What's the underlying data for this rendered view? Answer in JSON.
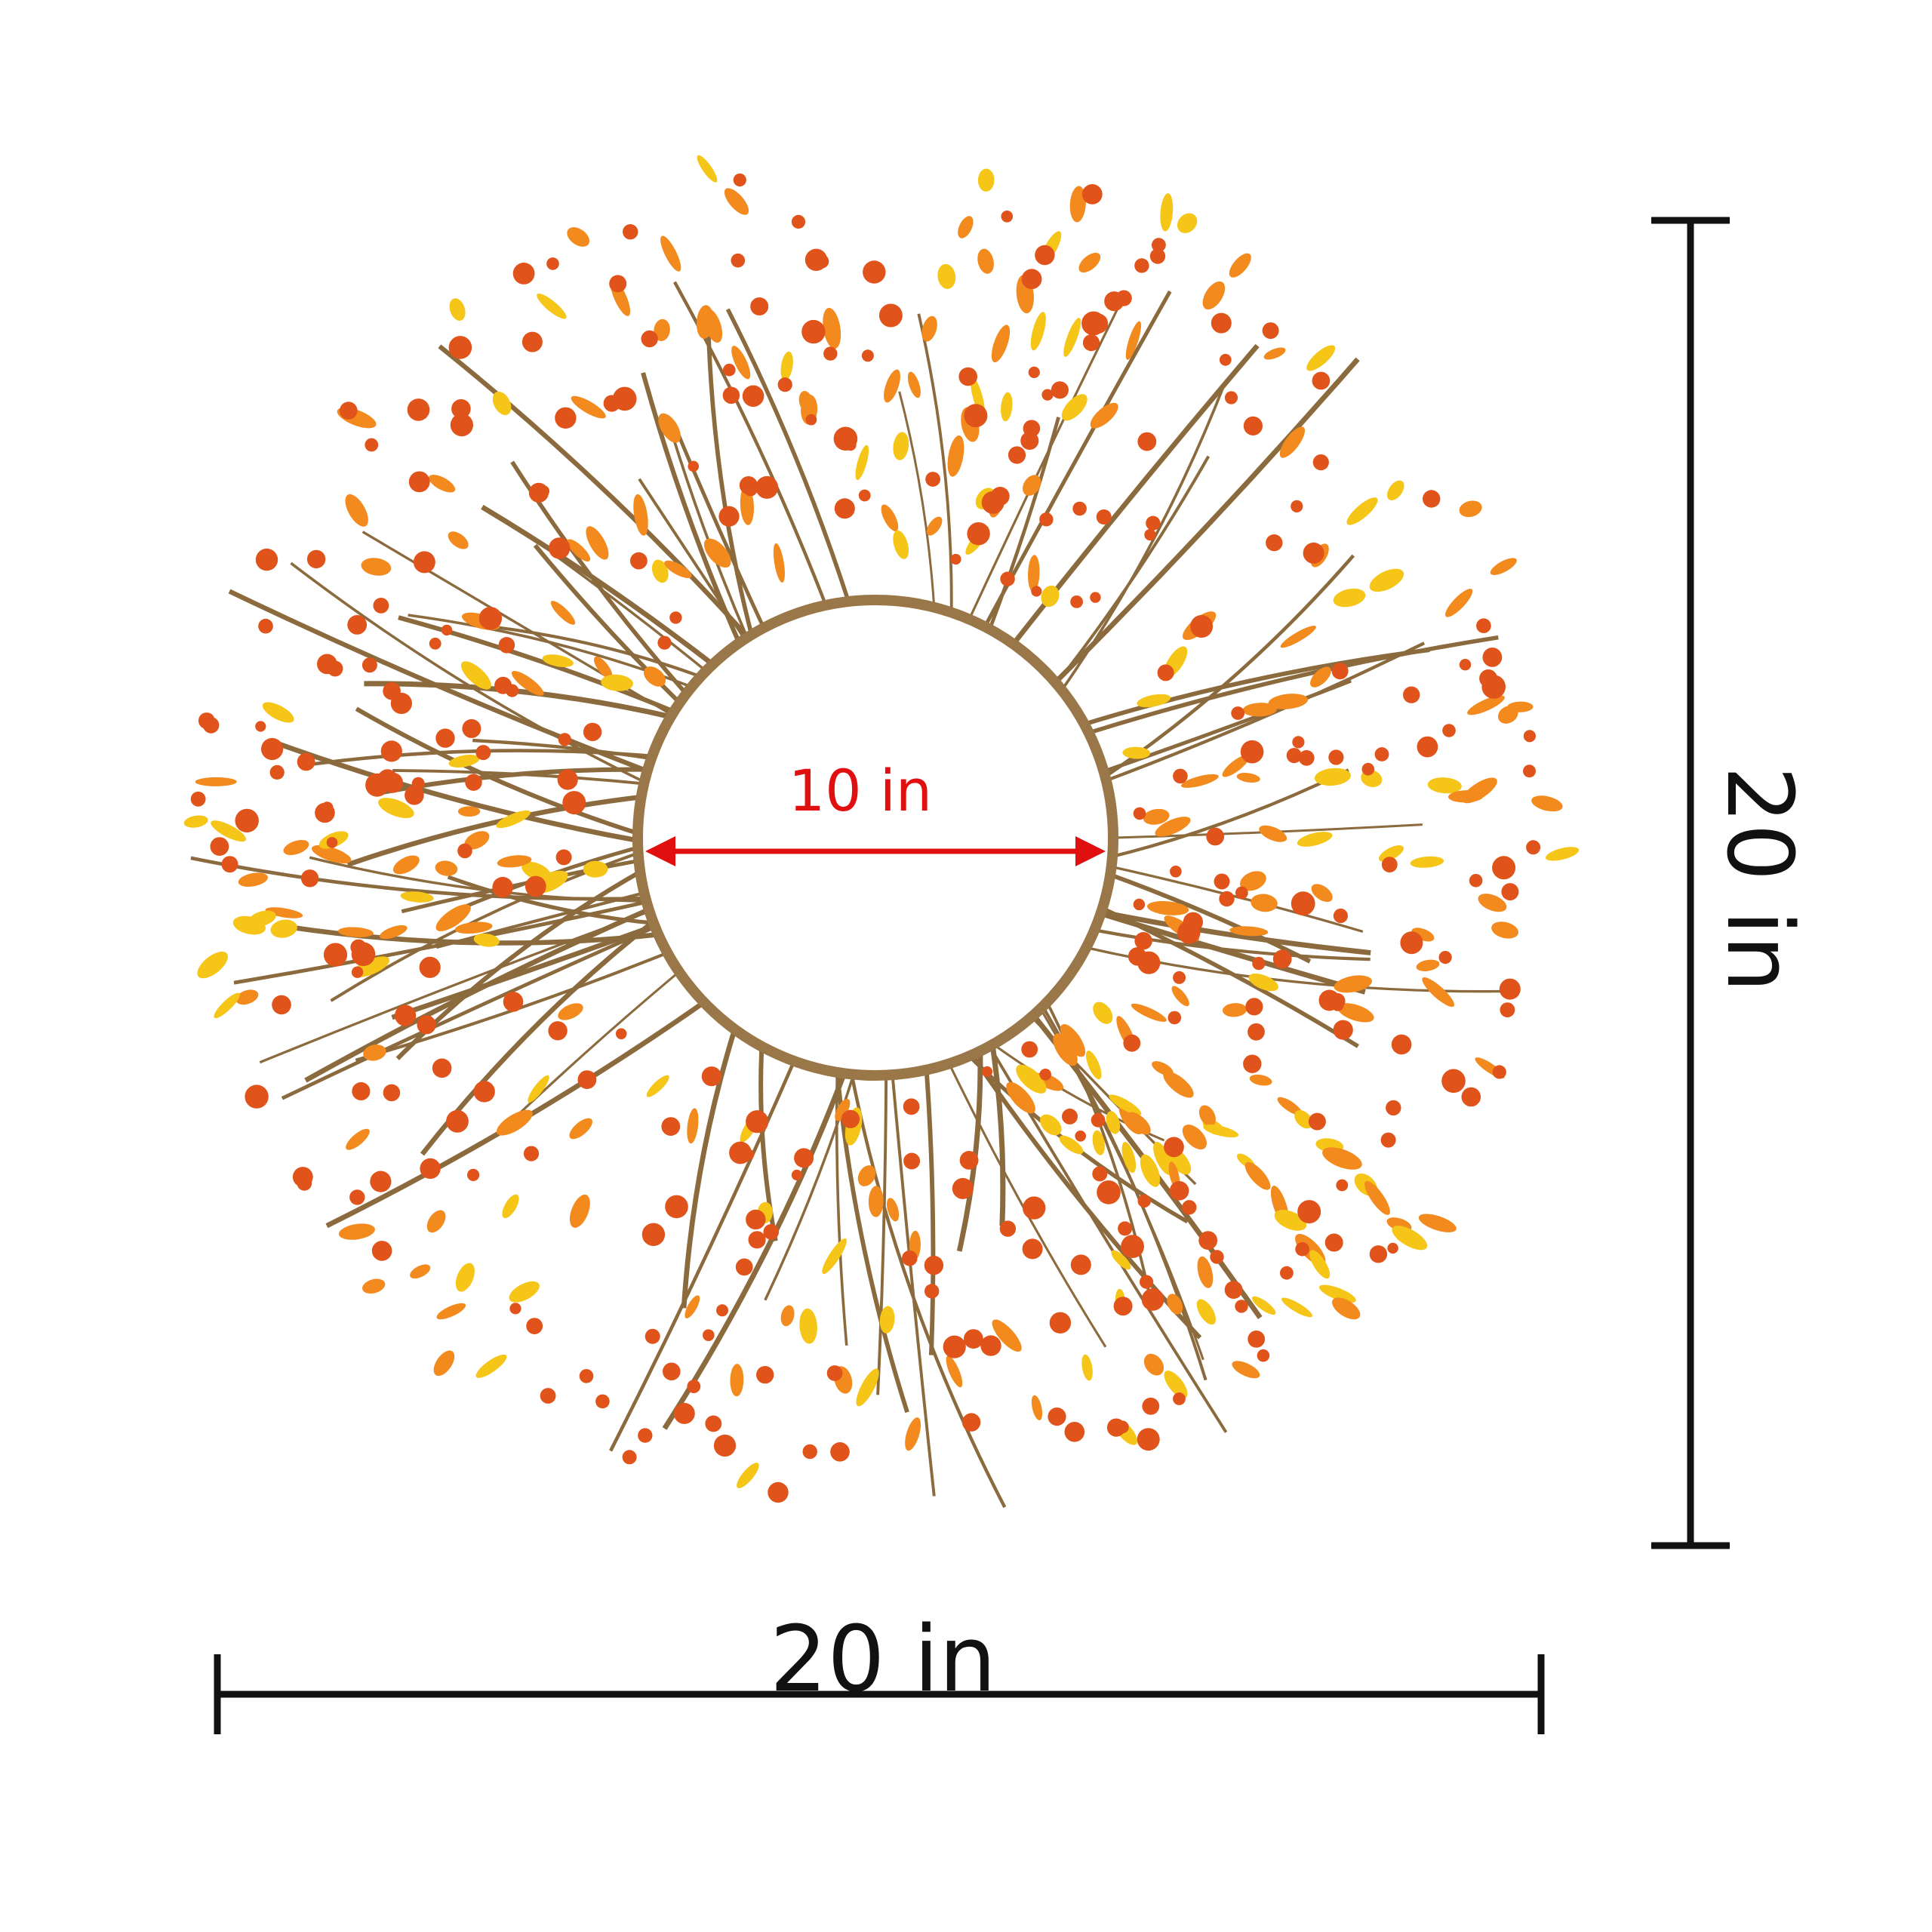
{
  "dimensions": {
    "inner_diameter": "10 in",
    "overall_width": "20 in",
    "overall_height": "20 in"
  },
  "colors": {
    "inner_arrow": "#e01010",
    "dimension_lines": "#111111",
    "vine": "#8b6a3e",
    "berry": "#e0531b",
    "orange_leaf": "#f28a1e",
    "yellow_leaf": "#f5c518"
  }
}
